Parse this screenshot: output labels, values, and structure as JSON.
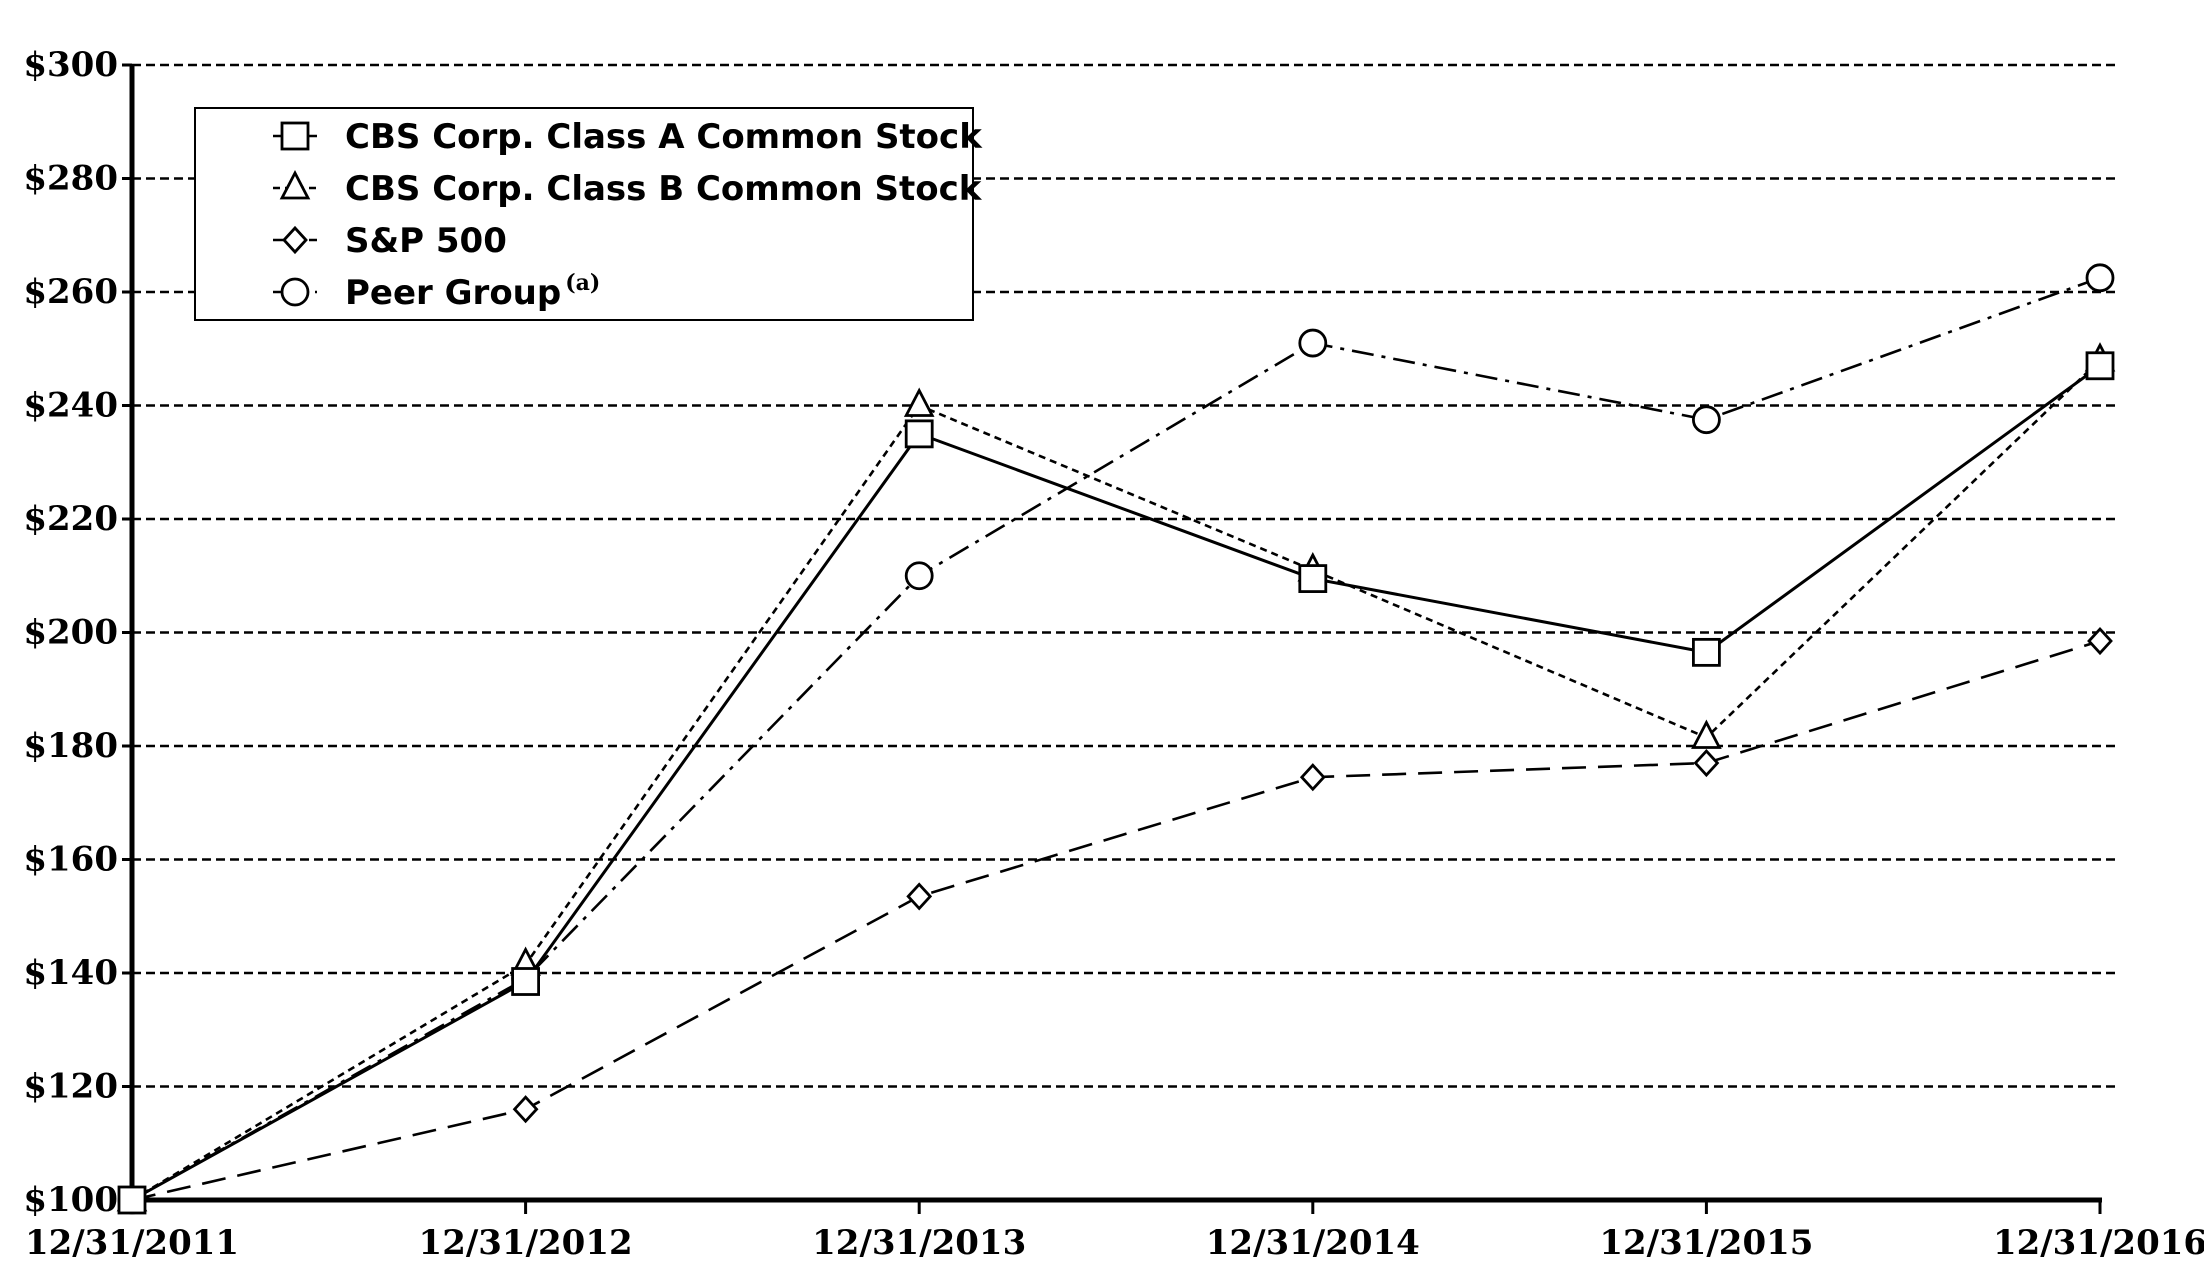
{
  "chart_data": {
    "type": "line",
    "categories": [
      "12/31/2011",
      "12/31/2012",
      "12/31/2013",
      "12/31/2014",
      "12/31/2015",
      "12/31/2016"
    ],
    "ylim": [
      100,
      300
    ],
    "yticks": [
      100,
      120,
      140,
      160,
      180,
      200,
      220,
      240,
      260,
      280,
      300
    ],
    "ytick_labels": [
      "$100",
      "$120",
      "$140",
      "$160",
      "$180",
      "$200",
      "$220",
      "$240",
      "$260",
      "$280",
      "$300"
    ],
    "grid": "horizontal dashed",
    "legend_position": "top-left",
    "series": [
      {
        "name": "CBS Corp. Class A Common Stock",
        "marker": "square",
        "line": "solid",
        "values": [
          100,
          138.5,
          235,
          209.5,
          196.5,
          247
        ]
      },
      {
        "name": "CBS Corp. Class B Common Stock",
        "marker": "triangle",
        "line": "dotted",
        "values": [
          100,
          141.5,
          240,
          211,
          181.5,
          248
        ]
      },
      {
        "name": "S&P 500",
        "marker": "diamond",
        "line": "long-dash",
        "values": [
          100,
          116,
          153.5,
          174.5,
          177,
          198.5
        ]
      },
      {
        "name": "Peer Group",
        "name_superscript": "(a)",
        "marker": "circle",
        "line": "dash-dot",
        "values": [
          100,
          139,
          210,
          251,
          237.5,
          262.5
        ]
      }
    ]
  }
}
